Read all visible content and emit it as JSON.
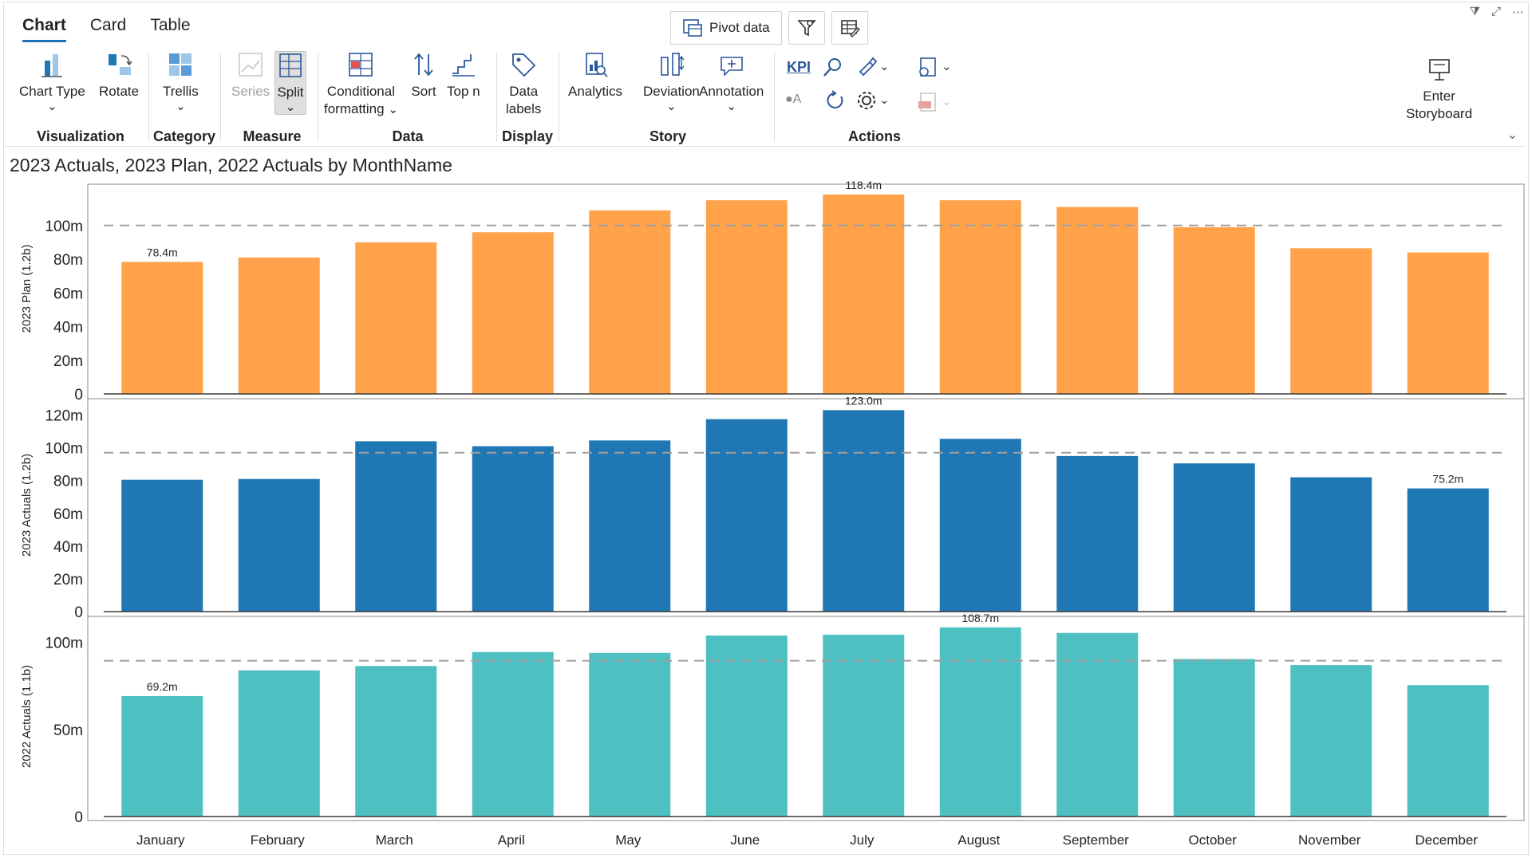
{
  "tabs": [
    {
      "label": "Chart",
      "active": true
    },
    {
      "label": "Card",
      "active": false
    },
    {
      "label": "Table",
      "active": false
    }
  ],
  "top_buttons": {
    "pivot_label": "Pivot data",
    "filter_icon": "funnel-pin-icon",
    "table_icon": "table-edit-icon"
  },
  "ribbon": {
    "visualization": {
      "label": "Visualization",
      "chart_type": "Chart Type",
      "rotate": "Rotate"
    },
    "category": {
      "label": "Category",
      "trellis": "Trellis"
    },
    "measure": {
      "label": "Measure",
      "series": "Series",
      "split": "Split"
    },
    "data": {
      "label": "Data",
      "cond_line1": "Conditional",
      "cond_line2": "formatting",
      "sort": "Sort",
      "topn": "Top n"
    },
    "display": {
      "label": "Display",
      "labels_line1": "Data",
      "labels_line2": "labels"
    },
    "story": {
      "label": "Story",
      "analytics": "Analytics",
      "deviation": "Deviation",
      "annotation": "Annotation"
    },
    "actions": {
      "label": "Actions",
      "kpi": "KPI"
    },
    "storyboard": {
      "line1": "Enter",
      "line2": "Storyboard"
    }
  },
  "chart_title": "2023 Actuals, 2023 Plan, 2022 Actuals by MonthName",
  "colors": {
    "plan": "#FFA24A",
    "actuals2023": "#1F77B4",
    "actuals2022": "#4EC0C1",
    "accent": "#1F6FB5"
  },
  "chart_data": [
    {
      "type": "bar",
      "ylabel": "2023 Plan (1.2b)",
      "categories": [
        "January",
        "February",
        "March",
        "April",
        "May",
        "June",
        "July",
        "August",
        "September",
        "October",
        "November",
        "December"
      ],
      "values": [
        78.4,
        81,
        90,
        96,
        109,
        115,
        118.4,
        115,
        111,
        99,
        86.5,
        84
      ],
      "ylim": [
        0,
        125
      ],
      "yticks": [
        {
          "v": 0,
          "t": "0"
        },
        {
          "v": 20,
          "t": "20m"
        },
        {
          "v": 40,
          "t": "40m"
        },
        {
          "v": 60,
          "t": "60m"
        },
        {
          "v": 80,
          "t": "80m"
        },
        {
          "v": 100,
          "t": "100m"
        }
      ],
      "reference_line": 100,
      "data_labels": {
        "0": "78.4m",
        "6": "118.4m"
      }
    },
    {
      "type": "bar",
      "ylabel": "2023 Actuals (1.2b)",
      "categories": [
        "January",
        "February",
        "March",
        "April",
        "May",
        "June",
        "July",
        "August",
        "September",
        "October",
        "November",
        "December"
      ],
      "values": [
        80.5,
        81,
        104,
        101,
        104.5,
        117.5,
        123.0,
        105.5,
        95,
        90.5,
        82,
        75.2
      ],
      "ylim": [
        0,
        130
      ],
      "yticks": [
        {
          "v": 0,
          "t": "0"
        },
        {
          "v": 20,
          "t": "20m"
        },
        {
          "v": 40,
          "t": "40m"
        },
        {
          "v": 60,
          "t": "60m"
        },
        {
          "v": 80,
          "t": "80m"
        },
        {
          "v": 100,
          "t": "100m"
        },
        {
          "v": 120,
          "t": "120m"
        }
      ],
      "reference_line": 97,
      "data_labels": {
        "6": "123.0m",
        "11": "75.2m"
      }
    },
    {
      "type": "bar",
      "ylabel": "2022 Actuals (1.1b)",
      "categories": [
        "January",
        "February",
        "March",
        "April",
        "May",
        "June",
        "July",
        "August",
        "September",
        "October",
        "November",
        "December"
      ],
      "values": [
        69.2,
        84,
        86.5,
        94.5,
        94,
        104,
        104.5,
        108.7,
        105.5,
        90.5,
        87,
        75.5
      ],
      "ylim": [
        0,
        115
      ],
      "yticks": [
        {
          "v": 0,
          "t": "0"
        },
        {
          "v": 50,
          "t": "50m"
        },
        {
          "v": 100,
          "t": "100m"
        }
      ],
      "reference_line": 89.5,
      "data_labels": {
        "0": "69.2m",
        "7": "108.7m"
      }
    }
  ]
}
